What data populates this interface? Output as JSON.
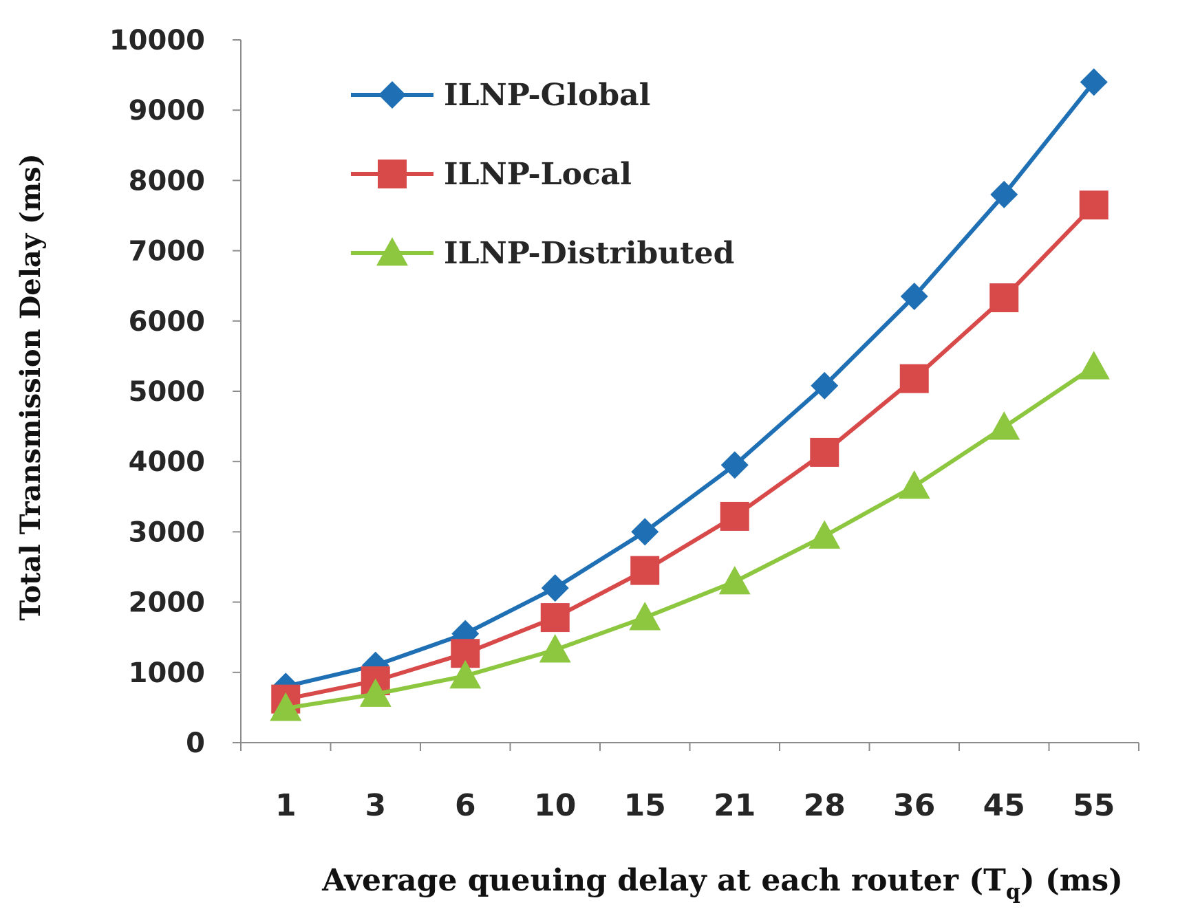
{
  "chart_data": {
    "type": "line",
    "title": "",
    "xlabel_main": "Average queuing delay at each router (T",
    "xlabel_sub": "q",
    "xlabel_tail": ") (ms)",
    "ylabel": "Total Transmission Delay (ms)",
    "ylim": [
      0,
      10000
    ],
    "yticks": [
      "0",
      "1000",
      "2000",
      "3000",
      "4000",
      "5000",
      "6000",
      "7000",
      "8000",
      "9000",
      "10000"
    ],
    "categories": [
      "1",
      "3",
      "6",
      "10",
      "15",
      "21",
      "28",
      "36",
      "45",
      "55"
    ],
    "grid": false,
    "legend_position": "top-left",
    "series": [
      {
        "name": "ILNP-Global",
        "color": "#1f6fb4",
        "marker": "diamond",
        "values": [
          800,
          1100,
          1550,
          2200,
          3000,
          3950,
          5080,
          6350,
          7800,
          9400
        ]
      },
      {
        "name": "ILNP-Local",
        "color": "#d84a4a",
        "marker": "square",
        "values": [
          620,
          880,
          1270,
          1780,
          2450,
          3220,
          4130,
          5180,
          6330,
          7650
        ]
      },
      {
        "name": "ILNP-Distributed",
        "color": "#8dc63f",
        "marker": "triangle",
        "values": [
          490,
          690,
          950,
          1320,
          1780,
          2290,
          2940,
          3650,
          4490,
          5350
        ]
      }
    ]
  }
}
